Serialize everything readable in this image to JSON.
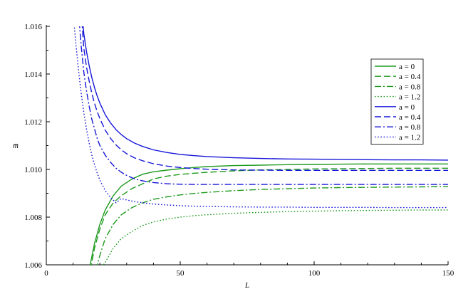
{
  "chart_data": {
    "type": "line",
    "xlabel": "L",
    "ylabel": "m̅",
    "xlim": [
      0,
      150
    ],
    "ylim": [
      1.006,
      1.016
    ],
    "x_ticks": [
      0,
      50,
      100,
      150
    ],
    "x_tick_labels": [
      "0",
      "50",
      "100",
      "150"
    ],
    "y_ticks": [
      1.006,
      1.008,
      1.01,
      1.012,
      1.014,
      1.016
    ],
    "y_tick_labels": [
      "1.006",
      "1.008",
      "1.010",
      "1.012",
      "1.014",
      "1.016"
    ],
    "grid": false,
    "legend_position": "right",
    "colors": {
      "green": "#1e9a1e",
      "blue": "#1616d8"
    },
    "series": [
      {
        "label": "a = 0",
        "color": "green",
        "dash": "solid",
        "x": [
          16,
          18,
          20,
          22,
          25,
          28,
          32,
          36,
          40,
          45,
          50,
          55,
          60,
          70,
          80,
          90,
          100,
          110,
          120,
          130,
          140,
          150
        ],
        "y": [
          1.0058,
          1.0069,
          1.0077,
          1.0083,
          1.0089,
          1.0093,
          1.0096,
          1.0098,
          1.0099,
          1.00997,
          1.01003,
          1.01008,
          1.01012,
          1.01016,
          1.01018,
          1.0102,
          1.01021,
          1.01022,
          1.01023,
          1.01023,
          1.01023,
          1.01023
        ]
      },
      {
        "label": "a = 0.4",
        "color": "green",
        "dash": "dash",
        "x": [
          16.5,
          18,
          20,
          22,
          25,
          28,
          32,
          36,
          40,
          45,
          50,
          55,
          60,
          70,
          80,
          90,
          100,
          110,
          120,
          130,
          140,
          150
        ],
        "y": [
          1.0058,
          1.0067,
          1.0075,
          1.0081,
          1.0086,
          1.0089,
          1.0092,
          1.0094,
          1.0096,
          1.00972,
          1.00979,
          1.00984,
          1.00988,
          1.00994,
          1.00998,
          1.01,
          1.01002,
          1.01003,
          1.01004,
          1.01005,
          1.01005,
          1.01005
        ]
      },
      {
        "label": "a = 0.8",
        "color": "green",
        "dash": "dashdot",
        "x": [
          18.5,
          20,
          22,
          25,
          28,
          32,
          36,
          40,
          45,
          50,
          55,
          60,
          70,
          80,
          90,
          100,
          110,
          120,
          130,
          140,
          150
        ],
        "y": [
          1.0058,
          1.0064,
          1.0071,
          1.0077,
          1.0081,
          1.0084,
          1.0086,
          1.00875,
          1.00885,
          1.00893,
          1.00899,
          1.00904,
          1.00911,
          1.00916,
          1.00919,
          1.00922,
          1.00924,
          1.00925,
          1.00926,
          1.00927,
          1.00928
        ]
      },
      {
        "label": "a = 1.2",
        "color": "green",
        "dash": "dot",
        "x": [
          20,
          22,
          25,
          28,
          32,
          36,
          40,
          45,
          50,
          55,
          60,
          70,
          80,
          90,
          100,
          110,
          120,
          130,
          140,
          150
        ],
        "y": [
          1.0058,
          1.0061,
          1.0067,
          1.0071,
          1.0074,
          1.00765,
          1.0078,
          1.00792,
          1.008,
          1.00806,
          1.0081,
          1.00816,
          1.0082,
          1.00823,
          1.00825,
          1.00827,
          1.00828,
          1.00829,
          1.0083,
          1.0083
        ]
      },
      {
        "label": "a = 0",
        "color": "blue",
        "dash": "solid",
        "x": [
          13.6,
          14,
          15,
          16,
          17,
          18,
          19,
          20,
          22,
          24,
          26,
          28,
          30,
          33,
          36,
          40,
          45,
          50,
          55,
          60,
          70,
          80,
          90,
          100,
          110,
          120,
          130,
          140,
          150
        ],
        "y": [
          1.0162,
          1.0157,
          1.01495,
          1.01435,
          1.01385,
          1.01343,
          1.01308,
          1.01278,
          1.0123,
          1.01195,
          1.01167,
          1.01146,
          1.01129,
          1.0111,
          1.01096,
          1.01082,
          1.01071,
          1.01063,
          1.01058,
          1.01054,
          1.01049,
          1.01046,
          1.01044,
          1.01043,
          1.01042,
          1.01041,
          1.0104,
          1.0104,
          1.01039
        ]
      },
      {
        "label": "a = 0.4",
        "color": "blue",
        "dash": "dash",
        "x": [
          13.3,
          14,
          15,
          16,
          17,
          18,
          19,
          20,
          22,
          24,
          26,
          28,
          30,
          33,
          36,
          40,
          45,
          50,
          55,
          60,
          70,
          80,
          90,
          100,
          110,
          120,
          130,
          140,
          150
        ],
        "y": [
          1.0162,
          1.0151,
          1.0143,
          1.0137,
          1.0132,
          1.01277,
          1.01243,
          1.01213,
          1.01165,
          1.0113,
          1.01103,
          1.01082,
          1.01066,
          1.01048,
          1.01036,
          1.01024,
          1.01014,
          1.01008,
          1.01004,
          1.01001,
          1.00998,
          1.00997,
          1.00996,
          1.00996,
          1.00996,
          1.00996,
          1.00996,
          1.00996,
          1.00996
        ]
      },
      {
        "label": "a = 0.8",
        "color": "blue",
        "dash": "dashdot",
        "x": [
          12.3,
          13,
          14,
          15,
          16,
          17,
          18,
          19,
          20,
          22,
          24,
          26,
          28,
          30,
          33,
          36,
          40,
          45,
          50,
          55,
          60,
          70,
          80,
          90,
          100,
          110,
          120,
          130,
          140,
          150
        ],
        "y": [
          1.0162,
          1.0152,
          1.0141,
          1.0133,
          1.01265,
          1.0121,
          1.0117,
          1.0113,
          1.011,
          1.0106,
          1.0103,
          1.01005,
          1.00988,
          1.00975,
          1.0096,
          1.00952,
          1.00945,
          1.0094,
          1.00938,
          1.00937,
          1.00937,
          1.00937,
          1.00937,
          1.00937,
          1.00937,
          1.00937,
          1.00937,
          1.00937,
          1.00937,
          1.00937
        ]
      },
      {
        "label": "a = 1.2",
        "color": "blue",
        "dash": "dot",
        "x": [
          10.3,
          11,
          12,
          13,
          14,
          15,
          16,
          17,
          18,
          19,
          20,
          22,
          24,
          26,
          28,
          30,
          33,
          36,
          40,
          45,
          50,
          55,
          60,
          70,
          80,
          90,
          100,
          110,
          120,
          130,
          140,
          150
        ],
        "y": [
          1.0162,
          1.0153,
          1.0142,
          1.0132,
          1.0124,
          1.0117,
          1.0111,
          1.0106,
          1.0102,
          1.00985,
          1.00955,
          1.00912,
          1.00882,
          1.0086,
          1.00878,
          1.00872,
          1.00865,
          1.0086,
          1.00855,
          1.00851,
          1.00848,
          1.00846,
          1.00845,
          1.00843,
          1.00842,
          1.00842,
          1.00841,
          1.00841,
          1.00841,
          1.0084,
          1.0084,
          1.0084
        ]
      }
    ]
  }
}
